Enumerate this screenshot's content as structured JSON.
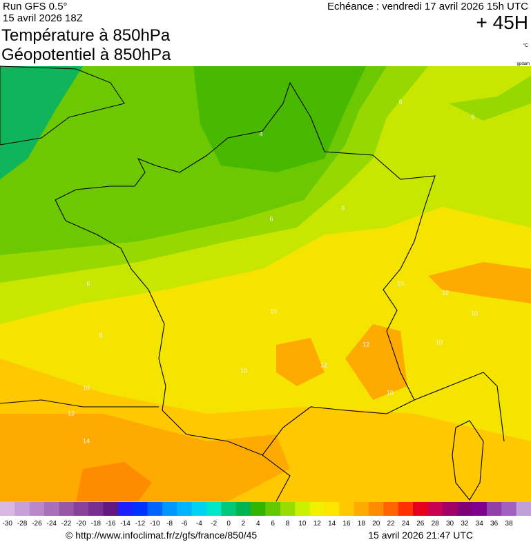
{
  "header": {
    "run": "Run GFS 0.5°",
    "run_date": "15 avril 2026 18Z",
    "title_1": "Température à 850hPa",
    "title_2": "Géopotentiel à 850hPa",
    "forecast": "Echéance : vendredi 17 avril 2026 15h UTC",
    "lead": "+ 45H",
    "unit": "°C",
    "credit": "gpdam"
  },
  "map": {
    "contour_labels": [
      "4",
      "6",
      "6",
      "6",
      "6",
      "6",
      "8",
      "10",
      "12",
      "10",
      "10",
      "12",
      "10",
      "10",
      "12",
      "10",
      "12",
      "14",
      "10"
    ]
  },
  "scale": {
    "labels": [
      -30,
      -28,
      -26,
      -24,
      -22,
      -20,
      -18,
      -16,
      -14,
      -12,
      -10,
      -8,
      -6,
      -4,
      -2,
      0,
      2,
      4,
      6,
      8,
      10,
      12,
      14,
      16,
      18,
      20,
      22,
      24,
      26,
      28,
      30,
      32,
      34,
      36,
      38
    ],
    "colors": [
      "#d8b8e0",
      "#c8a0d8",
      "#b888c8",
      "#a870b8",
      "#9858a8",
      "#884098",
      "#783090",
      "#601880",
      "#1e1eff",
      "#0032ff",
      "#0064ff",
      "#0096ff",
      "#00b4ff",
      "#00d2f0",
      "#00e6c8",
      "#00c878",
      "#00b450",
      "#32b400",
      "#64c800",
      "#96dc00",
      "#c8f000",
      "#f0f000",
      "#ffe600",
      "#ffc800",
      "#ffaa00",
      "#ff8c00",
      "#ff6400",
      "#ff3200",
      "#e6001e",
      "#c80050",
      "#a00064",
      "#800078",
      "#800090",
      "#9040a8",
      "#a060c0",
      "#c0a0d8"
    ]
  },
  "footer": {
    "url": "© http://www.infoclimat.fr/z/gfs/france/850/45",
    "timestamp": "15 avril 2026 21:47 UTC"
  }
}
